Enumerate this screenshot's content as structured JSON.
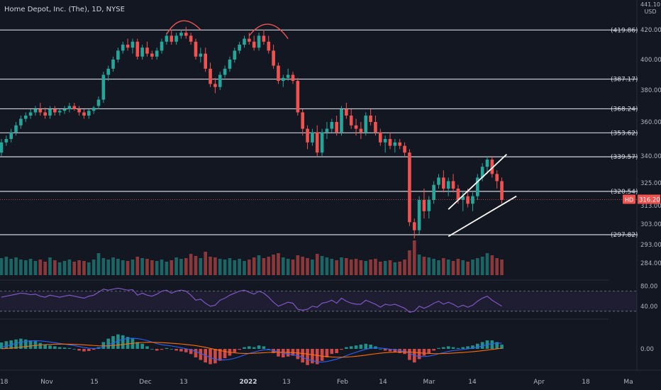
{
  "header": {
    "title": "Home Depot, Inc. (The), 1D, NYSE",
    "currency": "USD",
    "currency_top": "441.10"
  },
  "price_labels": [
    {
      "value": 420.0,
      "text": "420.00"
    },
    {
      "value": 400.0,
      "text": "400.00"
    },
    {
      "value": 380.0,
      "text": "380.00"
    },
    {
      "value": 360.0,
      "text": "360.00"
    },
    {
      "value": 340.0,
      "text": "340.00"
    },
    {
      "value": 325.0,
      "text": "325.00"
    },
    {
      "value": 313.0,
      "text": "313.00"
    },
    {
      "value": 303.0,
      "text": "303.00"
    },
    {
      "value": 293.0,
      "text": "293.00"
    },
    {
      "value": 284.0,
      "text": "284.00"
    }
  ],
  "horizontal_levels": [
    {
      "value": 419.86,
      "text": "(419.86)"
    },
    {
      "value": 387.17,
      "text": "(387.17)"
    },
    {
      "value": 368.24,
      "text": "(368.24)"
    },
    {
      "value": 353.62,
      "text": "(353.62)"
    },
    {
      "value": 339.57,
      "text": "(339.57)"
    },
    {
      "value": 320.54,
      "text": "(320.54)"
    },
    {
      "value": 297.82,
      "text": "(297.82)"
    }
  ],
  "last_price": {
    "symbol": "HD",
    "value": 316.2,
    "text": "316.20"
  },
  "x_axis": {
    "labels": [
      "18",
      "Nov",
      "15",
      "Dec",
      "13",
      "2022",
      "13",
      "Feb",
      "14",
      "Mar",
      "14",
      "Apr",
      "18",
      "Ma"
    ]
  },
  "rsi": {
    "upper": 70,
    "lower": 30,
    "labels": [
      "80.00",
      "40.00"
    ]
  },
  "macd": {
    "labels": [
      "0.00"
    ]
  },
  "colors": {
    "background": "#131722",
    "up": "#26a69a",
    "down": "#ef5350",
    "level_line": "#d1d4dc",
    "rsi_line": "#7e57c2",
    "macd_line": "#2962ff",
    "signal_line": "#ff6d00",
    "arc": "#ef5350"
  },
  "chart_data": {
    "type": "candlestick",
    "ohlc": [
      [
        342,
        350,
        340,
        348
      ],
      [
        348,
        352,
        346,
        350
      ],
      [
        350,
        356,
        348,
        354
      ],
      [
        354,
        360,
        352,
        358
      ],
      [
        358,
        364,
        356,
        362
      ],
      [
        362,
        366,
        360,
        364
      ],
      [
        364,
        368,
        362,
        366
      ],
      [
        366,
        370,
        364,
        368
      ],
      [
        368,
        372,
        364,
        366
      ],
      [
        366,
        369,
        362,
        364
      ],
      [
        364,
        370,
        362,
        368
      ],
      [
        368,
        370,
        364,
        366
      ],
      [
        366,
        368,
        364,
        367
      ],
      [
        367,
        370,
        365,
        368
      ],
      [
        368,
        372,
        366,
        370
      ],
      [
        370,
        372,
        367,
        368
      ],
      [
        368,
        370,
        364,
        366
      ],
      [
        366,
        368,
        362,
        364
      ],
      [
        364,
        368,
        362,
        367
      ],
      [
        367,
        370,
        365,
        369
      ],
      [
        370,
        376,
        368,
        374
      ],
      [
        374,
        392,
        372,
        390
      ],
      [
        390,
        396,
        386,
        394
      ],
      [
        394,
        402,
        392,
        400
      ],
      [
        400,
        408,
        398,
        406
      ],
      [
        406,
        412,
        404,
        410
      ],
      [
        410,
        414,
        406,
        408
      ],
      [
        408,
        414,
        404,
        412
      ],
      [
        412,
        414,
        400,
        402
      ],
      [
        402,
        410,
        400,
        408
      ],
      [
        408,
        412,
        402,
        404
      ],
      [
        404,
        406,
        400,
        402
      ],
      [
        402,
        408,
        400,
        406
      ],
      [
        406,
        414,
        404,
        412
      ],
      [
        412,
        418,
        410,
        416
      ],
      [
        416,
        420,
        410,
        412
      ],
      [
        412,
        418,
        410,
        416
      ],
      [
        416,
        420,
        414,
        418
      ],
      [
        418,
        422,
        414,
        416
      ],
      [
        416,
        418,
        410,
        412
      ],
      [
        412,
        414,
        400,
        402
      ],
      [
        402,
        408,
        398,
        404
      ],
      [
        404,
        408,
        392,
        394
      ],
      [
        394,
        398,
        382,
        384
      ],
      [
        384,
        388,
        378,
        382
      ],
      [
        382,
        392,
        380,
        390
      ],
      [
        390,
        396,
        388,
        394
      ],
      [
        394,
        402,
        392,
        400
      ],
      [
        400,
        408,
        398,
        406
      ],
      [
        406,
        412,
        404,
        410
      ],
      [
        410,
        416,
        408,
        414
      ],
      [
        414,
        418,
        410,
        412
      ],
      [
        412,
        416,
        406,
        408
      ],
      [
        408,
        418,
        406,
        416
      ],
      [
        416,
        420,
        410,
        412
      ],
      [
        412,
        416,
        404,
        406
      ],
      [
        406,
        410,
        394,
        396
      ],
      [
        396,
        398,
        384,
        386
      ],
      [
        386,
        390,
        382,
        388
      ],
      [
        388,
        394,
        386,
        390
      ],
      [
        390,
        392,
        384,
        386
      ],
      [
        386,
        388,
        364,
        366
      ],
      [
        366,
        368,
        352,
        356
      ],
      [
        356,
        358,
        344,
        348
      ],
      [
        348,
        356,
        346,
        354
      ],
      [
        354,
        358,
        340,
        342
      ],
      [
        342,
        356,
        340,
        354
      ],
      [
        354,
        360,
        350,
        356
      ],
      [
        356,
        362,
        354,
        360
      ],
      [
        360,
        364,
        352,
        354
      ],
      [
        354,
        370,
        352,
        368
      ],
      [
        368,
        372,
        362,
        364
      ],
      [
        364,
        368,
        356,
        358
      ],
      [
        358,
        362,
        352,
        356
      ],
      [
        356,
        360,
        350,
        354
      ],
      [
        354,
        366,
        352,
        364
      ],
      [
        364,
        368,
        358,
        360
      ],
      [
        360,
        364,
        352,
        354
      ],
      [
        354,
        356,
        346,
        348
      ],
      [
        348,
        352,
        342,
        350
      ],
      [
        350,
        354,
        344,
        346
      ],
      [
        346,
        350,
        342,
        348
      ],
      [
        348,
        350,
        344,
        346
      ],
      [
        346,
        348,
        340,
        342
      ],
      [
        342,
        344,
        302,
        304
      ],
      [
        304,
        306,
        296,
        300
      ],
      [
        300,
        318,
        298,
        316
      ],
      [
        316,
        322,
        306,
        310
      ],
      [
        310,
        318,
        306,
        316
      ],
      [
        316,
        326,
        314,
        324
      ],
      [
        324,
        330,
        322,
        328
      ],
      [
        328,
        332,
        320,
        322
      ],
      [
        322,
        328,
        318,
        326
      ],
      [
        326,
        330,
        320,
        322
      ],
      [
        322,
        324,
        314,
        316
      ],
      [
        316,
        320,
        310,
        318
      ],
      [
        318,
        322,
        312,
        314
      ],
      [
        314,
        320,
        310,
        318
      ],
      [
        318,
        330,
        316,
        328
      ],
      [
        328,
        336,
        326,
        334
      ],
      [
        334,
        340,
        330,
        338
      ],
      [
        338,
        340,
        328,
        330
      ],
      [
        330,
        332,
        322,
        326
      ],
      [
        326,
        328,
        314,
        316
      ]
    ],
    "volume": [
      48,
      52,
      46,
      50,
      44,
      42,
      46,
      40,
      44,
      38,
      50,
      42,
      36,
      40,
      44,
      38,
      42,
      40,
      36,
      44,
      62,
      48,
      44,
      50,
      46,
      42,
      40,
      44,
      52,
      48,
      46,
      42,
      40,
      44,
      38,
      42,
      50,
      46,
      48,
      60,
      54,
      48,
      66,
      52,
      50,
      46,
      44,
      48,
      42,
      46,
      40,
      44,
      50,
      56,
      48,
      52,
      58,
      62,
      50,
      46,
      44,
      56,
      52,
      48,
      44,
      60,
      54,
      50,
      46,
      42,
      50,
      48,
      44,
      46,
      42,
      40,
      44,
      46,
      38,
      40,
      42,
      36,
      38,
      44,
      70,
      98,
      58,
      52,
      50,
      46,
      42,
      48,
      44,
      40,
      46,
      42,
      38,
      44,
      48,
      52,
      62,
      56,
      48,
      44
    ],
    "rsi": [
      58,
      60,
      62,
      64,
      66,
      65,
      63,
      64,
      60,
      58,
      62,
      60,
      58,
      60,
      62,
      60,
      58,
      56,
      60,
      62,
      68,
      74,
      72,
      74,
      76,
      74,
      72,
      73,
      62,
      66,
      62,
      60,
      64,
      70,
      72,
      66,
      70,
      72,
      70,
      62,
      52,
      54,
      46,
      40,
      42,
      52,
      56,
      62,
      66,
      70,
      72,
      68,
      64,
      70,
      66,
      58,
      48,
      40,
      44,
      48,
      46,
      34,
      32,
      34,
      40,
      38,
      46,
      48,
      52,
      46,
      56,
      50,
      46,
      44,
      44,
      52,
      48,
      44,
      38,
      44,
      42,
      44,
      40,
      36,
      28,
      30,
      40,
      36,
      40,
      46,
      50,
      44,
      48,
      44,
      38,
      42,
      38,
      42,
      50,
      56,
      60,
      52,
      46,
      40
    ],
    "macd_hist": [
      1.5,
      1.8,
      2.0,
      2.2,
      2.4,
      2.2,
      2.0,
      1.8,
      1.4,
      1.0,
      0.8,
      0.6,
      0.4,
      0.3,
      0.2,
      0.0,
      -0.4,
      -0.6,
      -0.5,
      -0.2,
      0.4,
      1.6,
      2.4,
      3.0,
      3.4,
      3.2,
      2.8,
      2.4,
      1.6,
      1.2,
      0.6,
      0.0,
      -0.4,
      -0.2,
      0.2,
      0.0,
      -0.4,
      -0.6,
      -0.8,
      -1.2,
      -2.0,
      -2.6,
      -3.2,
      -3.6,
      -3.4,
      -2.8,
      -2.2,
      -1.6,
      -0.8,
      -0.2,
      0.4,
      0.6,
      0.4,
      0.8,
      0.6,
      0.0,
      -1.0,
      -1.8,
      -2.0,
      -1.8,
      -1.6,
      -2.4,
      -3.2,
      -3.8,
      -3.4,
      -3.6,
      -2.8,
      -2.0,
      -1.2,
      -1.0,
      -0.2,
      0.4,
      0.6,
      0.8,
      1.0,
      1.2,
      1.0,
      0.6,
      0.0,
      -0.4,
      -0.6,
      -0.8,
      -1.0,
      -1.2,
      -2.6,
      -3.2,
      -2.4,
      -1.6,
      -1.0,
      -0.4,
      0.2,
      0.4,
      0.6,
      0.4,
      0.2,
      0.4,
      0.6,
      0.8,
      1.2,
      1.6,
      2.0,
      2.0,
      1.6,
      1.0
    ]
  },
  "annotations": {
    "channel_upper": [
      [
        92,
        311
      ],
      [
        104,
        341
      ]
    ],
    "channel_lower": [
      [
        92,
        297
      ],
      [
        106,
        318
      ]
    ],
    "arcs": [
      [
        [
          34,
          417
        ],
        [
          37,
          423
        ],
        [
          41,
          420
        ]
      ],
      [
        [
          51,
          416
        ],
        [
          55,
          422
        ],
        [
          59,
          414
        ]
      ]
    ]
  }
}
